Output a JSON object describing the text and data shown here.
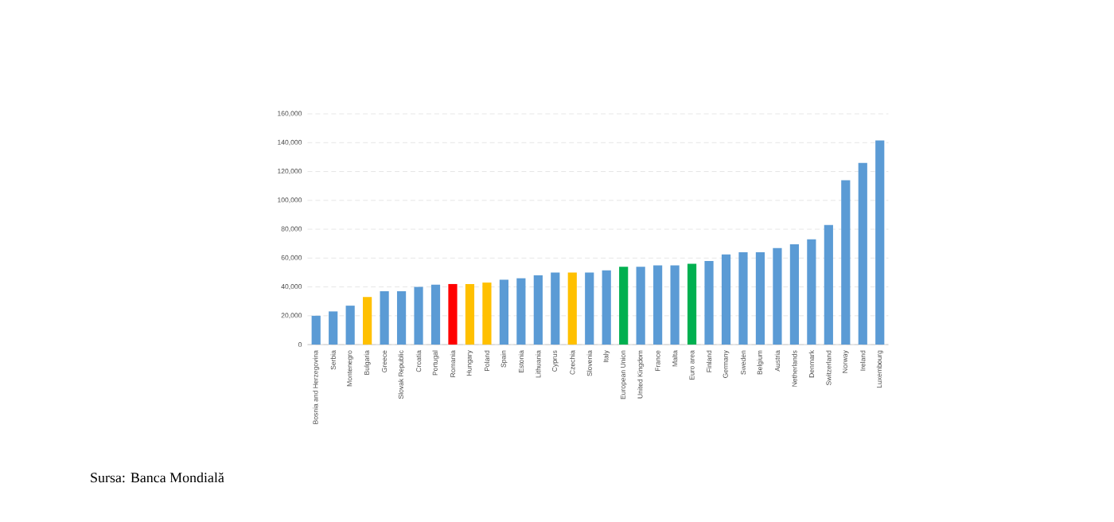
{
  "chart_data": {
    "type": "bar",
    "categories": [
      "Bosnia and Herzegovina",
      "Serbia",
      "Montenegro",
      "Bulgaria",
      "Greece",
      "Slovak Republic",
      "Croatia",
      "Portugal",
      "Romania",
      "Hungary",
      "Poland",
      "Spain",
      "Estonia",
      "Lithuania",
      "Cyprus",
      "Czechia",
      "Slovenia",
      "Italy",
      "European Union",
      "United Kingdom",
      "France",
      "Malta",
      "Euro area",
      "Finland",
      "Germany",
      "Sweden",
      "Belgium",
      "Austria",
      "Netherlands",
      "Denmark",
      "Switzerland",
      "Norway",
      "Ireland",
      "Luxembourg"
    ],
    "values": [
      20000,
      23000,
      27000,
      33000,
      37000,
      37000,
      40000,
      41500,
      42000,
      42000,
      43000,
      45000,
      46000,
      48000,
      50000,
      50000,
      50000,
      51500,
      54000,
      54000,
      55000,
      55000,
      56000,
      58000,
      62500,
      64000,
      64000,
      67000,
      69500,
      73000,
      83000,
      114000,
      126000,
      141500
    ],
    "colors": [
      "#5b9bd5",
      "#5b9bd5",
      "#5b9bd5",
      "#ffc000",
      "#5b9bd5",
      "#5b9bd5",
      "#5b9bd5",
      "#5b9bd5",
      "#ff0000",
      "#ffc000",
      "#ffc000",
      "#5b9bd5",
      "#5b9bd5",
      "#5b9bd5",
      "#5b9bd5",
      "#ffc000",
      "#5b9bd5",
      "#5b9bd5",
      "#00b050",
      "#5b9bd5",
      "#5b9bd5",
      "#5b9bd5",
      "#00b050",
      "#5b9bd5",
      "#5b9bd5",
      "#5b9bd5",
      "#5b9bd5",
      "#5b9bd5",
      "#5b9bd5",
      "#5b9bd5",
      "#5b9bd5",
      "#5b9bd5",
      "#5b9bd5",
      "#5b9bd5"
    ],
    "ylim": [
      0,
      160000
    ],
    "yticks": [
      {
        "value": 0,
        "label": "0"
      },
      {
        "value": 20000,
        "label": "20,000"
      },
      {
        "value": 40000,
        "label": "40,000"
      },
      {
        "value": 60000,
        "label": "60,000"
      },
      {
        "value": 80000,
        "label": "80,000"
      },
      {
        "value": 100000,
        "label": "100,000"
      },
      {
        "value": 120000,
        "label": "120,000"
      },
      {
        "value": 140000,
        "label": "140,000"
      },
      {
        "value": 160000,
        "label": "160,000"
      }
    ],
    "grid": "y",
    "annotations": [
      "Sursa: Banca Mondială"
    ]
  }
}
